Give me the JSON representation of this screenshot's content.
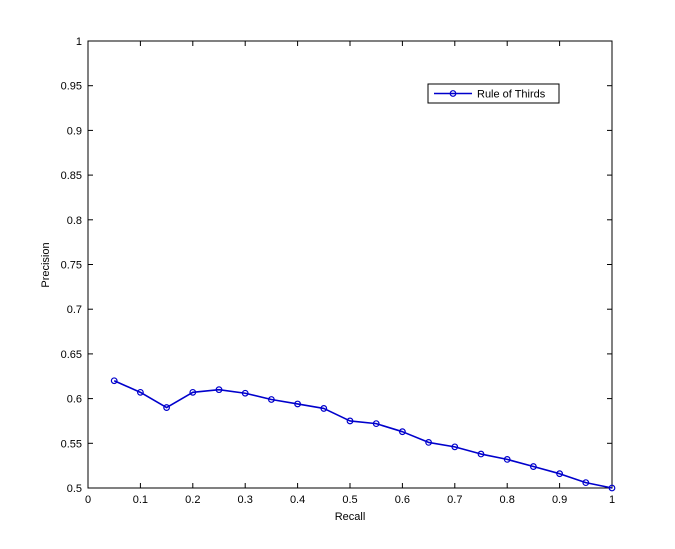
{
  "chart_data": {
    "type": "line",
    "xlabel": "Recall",
    "ylabel": "Precision",
    "xlim": [
      0,
      1
    ],
    "ylim": [
      0.5,
      1
    ],
    "xticks": [
      "0",
      "0.1",
      "0.2",
      "0.3",
      "0.4",
      "0.5",
      "0.6",
      "0.7",
      "0.8",
      "0.9",
      "1"
    ],
    "yticks": [
      "0.5",
      "0.55",
      "0.6",
      "0.65",
      "0.7",
      "0.75",
      "0.8",
      "0.85",
      "0.9",
      "0.95",
      "1"
    ],
    "legend_position": "top-right",
    "grid": false,
    "series": [
      {
        "name": "Rule of Thirds",
        "color": "#0000cc",
        "marker": "circle",
        "x": [
          0.05,
          0.1,
          0.15,
          0.2,
          0.25,
          0.3,
          0.35,
          0.4,
          0.45,
          0.5,
          0.55,
          0.6,
          0.65,
          0.7,
          0.75,
          0.8,
          0.85,
          0.9,
          0.95,
          1.0
        ],
        "y": [
          0.62,
          0.607,
          0.59,
          0.607,
          0.61,
          0.606,
          0.599,
          0.594,
          0.589,
          0.575,
          0.572,
          0.563,
          0.551,
          0.546,
          0.538,
          0.532,
          0.524,
          0.516,
          0.506,
          0.5
        ]
      }
    ]
  }
}
